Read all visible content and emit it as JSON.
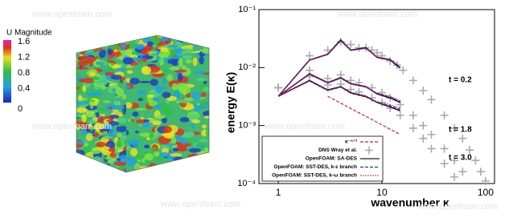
{
  "watermark": "www.openfoam.com",
  "colorbar": {
    "title": "U Magnitude",
    "ticks": [
      1.6,
      1.2,
      0.8,
      0.4,
      0
    ],
    "range": [
      0,
      1.6
    ]
  },
  "chart_data": {
    "type": "line",
    "xlabel": "wavenumber κ",
    "ylabel": "energy E(κ)",
    "log_x": true,
    "log_y": true,
    "xlim": [
      0.65,
      122
    ],
    "ylim": [
      0.0001,
      0.1
    ],
    "xticks": [
      1,
      10,
      100
    ],
    "yticks": [
      {
        "value": 0.0001,
        "label": "10⁻⁴"
      },
      {
        "value": 0.001,
        "label": "10⁻³"
      },
      {
        "value": 0.01,
        "label": "10⁻²"
      },
      {
        "value": 0.1,
        "label": "10⁻¹"
      }
    ],
    "annotations": [
      "t = 0.2",
      "t = 1.8",
      "t = 3.0"
    ],
    "legend": "lower left",
    "series": [
      {
        "name": "κ⁻⁵ᐟ³",
        "color": "#cc2222",
        "style": "dashed",
        "x": [
          3,
          15
        ],
        "values": [
          0.0032,
          0.0007
        ]
      },
      {
        "name": "DNS Wray et al.",
        "color": "#aaaaaa",
        "style": "markers",
        "x": [
          1,
          2,
          3,
          4,
          5,
          6,
          7,
          8,
          9,
          10,
          12,
          14,
          16,
          20,
          25,
          30,
          40,
          50,
          60,
          70,
          80,
          90,
          100,
          1,
          2,
          3,
          4,
          5,
          6,
          8,
          10,
          12,
          15,
          20,
          25,
          30,
          40,
          50,
          60,
          1,
          2,
          3,
          4,
          5,
          6,
          8,
          10,
          12,
          15,
          20,
          25,
          30,
          40,
          50
        ],
        "values": [
          0.0045,
          0.016,
          0.02,
          0.028,
          0.025,
          0.022,
          0.022,
          0.02,
          0.018,
          0.016,
          0.013,
          0.011,
          0.009,
          0.006,
          0.004,
          0.0028,
          0.0015,
          0.0009,
          0.0006,
          0.00038,
          0.00025,
          0.00016,
          0.00011,
          0.0045,
          0.009,
          0.0065,
          0.0075,
          0.006,
          0.0055,
          0.0045,
          0.0037,
          0.003,
          0.0023,
          0.0015,
          0.001,
          0.0007,
          0.0004,
          0.00025,
          0.00016,
          0.0045,
          0.007,
          0.005,
          0.0052,
          0.0042,
          0.0038,
          0.003,
          0.0025,
          0.002,
          0.0015,
          0.0009,
          0.0006,
          0.0004,
          0.00022,
          0.00013
        ]
      },
      {
        "name": "OpenFOAM: SA-DES",
        "color": "#2a1040",
        "style": "solid",
        "x": [
          1,
          2,
          3,
          4,
          5,
          7,
          9,
          12,
          15,
          null,
          1,
          2,
          3,
          4,
          5,
          7,
          9,
          12,
          15,
          null,
          1,
          2,
          3,
          4,
          5,
          7,
          9,
          12,
          15
        ],
        "values": [
          0.0032,
          0.0135,
          0.017,
          0.03,
          0.02,
          0.022,
          0.015,
          0.0135,
          0.0098,
          null,
          0.0032,
          0.0078,
          0.0055,
          0.0067,
          0.0053,
          0.0047,
          0.0035,
          0.003,
          0.0025,
          null,
          0.0032,
          0.006,
          0.0041,
          0.0047,
          0.0037,
          0.0032,
          0.0025,
          0.0021,
          0.0018
        ]
      },
      {
        "name": "OpenFOAM: SST-DES, k-ε branch",
        "color": "#2233bb",
        "style": "dashed",
        "x": [
          1,
          2,
          3,
          4,
          5,
          7,
          9,
          12,
          15,
          null,
          1,
          2,
          3,
          4,
          5,
          7,
          9,
          12,
          15,
          null,
          1,
          2,
          3,
          4,
          5,
          7,
          9,
          12,
          15
        ],
        "values": [
          0.0032,
          0.0134,
          0.0168,
          0.029,
          0.0198,
          0.0215,
          0.0152,
          0.0138,
          0.0102,
          null,
          0.0032,
          0.0077,
          0.0054,
          0.0066,
          0.0052,
          0.0046,
          0.0036,
          0.0031,
          0.0026,
          null,
          0.0032,
          0.0059,
          0.004,
          0.0046,
          0.0036,
          0.0031,
          0.0025,
          0.0022,
          0.0019
        ]
      },
      {
        "name": "OpenFOAM: SST-DES, k-ω branch",
        "color": "#cc2222",
        "style": "dotted",
        "x": [
          1,
          2,
          3,
          4,
          5,
          7,
          9,
          12,
          15,
          null,
          1,
          2,
          3,
          4,
          5,
          7,
          9,
          12,
          15,
          null,
          1,
          2,
          3,
          4,
          5,
          7,
          9,
          12,
          15
        ],
        "values": [
          0.0032,
          0.0133,
          0.0167,
          0.0288,
          0.0197,
          0.0213,
          0.0153,
          0.014,
          0.0105,
          null,
          0.0032,
          0.0076,
          0.0054,
          0.0065,
          0.0052,
          0.0046,
          0.0036,
          0.0032,
          0.0027,
          null,
          0.0032,
          0.0058,
          0.004,
          0.0046,
          0.0036,
          0.0031,
          0.0026,
          0.0023,
          0.002
        ]
      }
    ]
  }
}
